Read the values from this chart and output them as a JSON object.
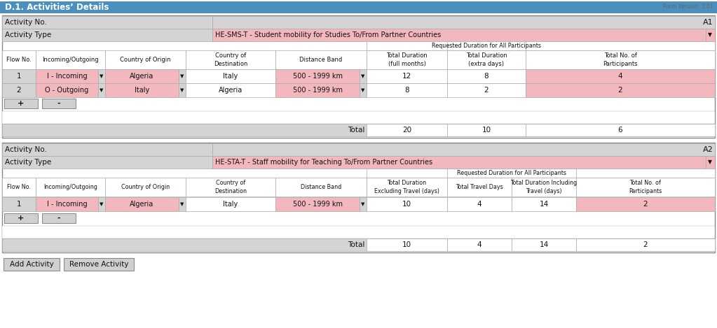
{
  "title": "D.1. Activities’ Details",
  "form_version": "Form Version: 3.01",
  "header_bg": "#4a8fbd",
  "header_text_color": "#ffffff",
  "light_gray": "#d4d4d4",
  "med_gray": "#c8c8c8",
  "pink": "#f2b8be",
  "white": "#ffffff",
  "button_bg": "#d0d0d0",
  "outer_border": "#aaaaaa",
  "cell_border": "#aaaaaa",
  "act1_no": "A1",
  "act1_type": "HE-SMS-T - Student mobility for Studies To/From Partner Countries",
  "sms_req_hdr": "Requested Duration for All Participants",
  "sms_rows": [
    {
      "flow": "1",
      "io": "I - Incoming",
      "origin": "Algeria",
      "dest": "Italy",
      "dist": "500 - 1999 km",
      "months": "12",
      "days": "8",
      "part": "4"
    },
    {
      "flow": "2",
      "io": "O - Outgoing",
      "origin": "Italy",
      "dest": "Algeria",
      "dist": "500 - 1999 km",
      "months": "8",
      "days": "2",
      "part": "2"
    }
  ],
  "sms_total": {
    "months": "20",
    "days": "10",
    "part": "6"
  },
  "act2_no": "A2",
  "act2_type": "HE-STA-T - Staff mobility for Teaching To/From Partner Countries",
  "sta_req_hdr": "Requested Duration for All Participants",
  "sta_rows": [
    {
      "flow": "1",
      "io": "I - Incoming",
      "origin": "Algeria",
      "dest": "Italy",
      "dist": "500 - 1999 km",
      "excl": "10",
      "travel": "4",
      "incl": "14",
      "part": "2"
    }
  ],
  "sta_total": {
    "excl": "10",
    "travel": "4",
    "incl": "14",
    "part": "2"
  },
  "btn_add": "Add Activity",
  "btn_remove": "Remove Activity"
}
